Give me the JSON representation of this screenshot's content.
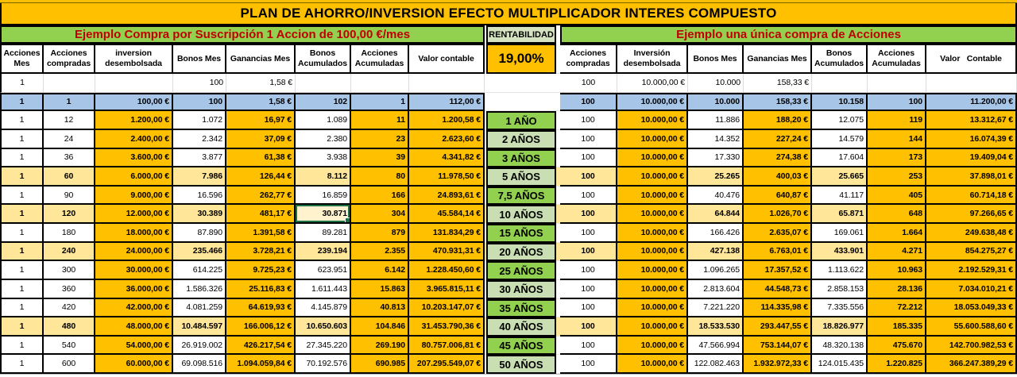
{
  "title": "PLAN DE AHORRO/INVERSION EFECTO MULTIPLICADOR INTERES COMPUESTO",
  "sections": {
    "left": "Ejemplo Compra por Suscripción 1 Accion de 100,00 €/mes",
    "rentabilidad_label": "RENTABILIDAD",
    "rate": "19,00%",
    "right": "Ejemplo una única compra de Acciones"
  },
  "colors": {
    "orange": "#FFC000",
    "header_green": "#92D050",
    "rentabilidad_green": "#D6E3C0",
    "year_light_green": "#C9DFB3",
    "band_cream": "#FFE699",
    "highlight_blue": "#A7C6E7",
    "section_text_red": "#C00000",
    "selection_green": "#1E7145"
  },
  "tables": {
    "left_headers": [
      "Acciones\nMes",
      "Acciones\ncompradas",
      "inversion\ndesembolsada",
      "Bonos Mes",
      "Ganancias Mes",
      "Bonos\nAcumulados",
      "Acciones\nAcumuladas",
      "Valor contable"
    ],
    "right_headers": [
      "Acciones\ncompradas",
      "Inversión\ndesembolsada",
      "Bonos Mes",
      "Ganancias Mes",
      "Bonos\nAcumulados",
      "Acciones\nAcumuladas",
      "Valor   Contable"
    ]
  },
  "rows": [
    {
      "style": "first",
      "left": [
        "1",
        "",
        "",
        "100",
        "1,58 €",
        "",
        "",
        ""
      ],
      "year": "",
      "year_shade": "",
      "right": [
        "100",
        "10.000,00 €",
        "10.000",
        "158,33 €",
        "",
        "",
        ""
      ]
    },
    {
      "style": "highlight",
      "left": [
        "1",
        "1",
        "100,00 €",
        "100",
        "1,58 €",
        "102",
        "1",
        "112,00 €"
      ],
      "year": "",
      "year_shade": "",
      "right": [
        "100",
        "10.000,00 €",
        "10.000",
        "158,33 €",
        "10.158",
        "100",
        "11.200,00 €"
      ]
    },
    {
      "style": "plain",
      "left": [
        "1",
        "12",
        "1.200,00 €",
        "1.072",
        "16,97 €",
        "1.089",
        "11",
        "1.200,58 €"
      ],
      "year": "1 AÑO",
      "year_shade": "bright",
      "right": [
        "100",
        "10.000,00 €",
        "11.886",
        "188,20 €",
        "12.075",
        "119",
        "13.312,67 €"
      ]
    },
    {
      "style": "plain",
      "left": [
        "1",
        "24",
        "2.400,00 €",
        "2.342",
        "37,09 €",
        "2.380",
        "23",
        "2.623,60 €"
      ],
      "year": "2 AÑOS",
      "year_shade": "light",
      "right": [
        "100",
        "10.000,00 €",
        "14.352",
        "227,24 €",
        "14.579",
        "144",
        "16.074,39 €"
      ]
    },
    {
      "style": "plain",
      "left": [
        "1",
        "36",
        "3.600,00 €",
        "3.877",
        "61,38 €",
        "3.938",
        "39",
        "4.341,82 €"
      ],
      "year": "3 AÑOS",
      "year_shade": "bright",
      "right": [
        "100",
        "10.000,00 €",
        "17.330",
        "274,38 €",
        "17.604",
        "173",
        "19.409,04 €"
      ]
    },
    {
      "style": "band",
      "left": [
        "1",
        "60",
        "6.000,00 €",
        "7.986",
        "126,44 €",
        "8.112",
        "80",
        "11.978,50 €"
      ],
      "year": "5 AÑOS",
      "year_shade": "light",
      "right": [
        "100",
        "10.000,00 €",
        "25.265",
        "400,03 €",
        "25.665",
        "253",
        "37.898,01 €"
      ]
    },
    {
      "style": "plain",
      "left": [
        "1",
        "90",
        "9.000,00 €",
        "16.596",
        "262,77 €",
        "16.859",
        "166",
        "24.893,61 €"
      ],
      "year": "7,5 AÑOS",
      "year_shade": "bright",
      "right": [
        "100",
        "10.000,00 €",
        "40.476",
        "640,87 €",
        "41.117",
        "405",
        "60.714,18 €"
      ]
    },
    {
      "style": "band",
      "left": [
        "1",
        "120",
        "12.000,00 €",
        "30.389",
        "481,17 €",
        "30.871",
        "304",
        "45.584,14 €"
      ],
      "year": "10 AÑOS",
      "year_shade": "light",
      "right": [
        "100",
        "10.000,00 €",
        "64.844",
        "1.026,70 €",
        "65.871",
        "648",
        "97.266,65 €"
      ]
    },
    {
      "style": "plain",
      "left": [
        "1",
        "180",
        "18.000,00 €",
        "87.890",
        "1.391,58 €",
        "89.281",
        "879",
        "131.834,29 €"
      ],
      "year": "15 AÑOS",
      "year_shade": "bright",
      "right": [
        "100",
        "10.000,00 €",
        "166.426",
        "2.635,07 €",
        "169.061",
        "1.664",
        "249.638,48 €"
      ]
    },
    {
      "style": "band",
      "left": [
        "1",
        "240",
        "24.000,00 €",
        "235.466",
        "3.728,21 €",
        "239.194",
        "2.355",
        "470.931,31 €"
      ],
      "year": "20 AÑOS",
      "year_shade": "light",
      "right": [
        "100",
        "10.000,00 €",
        "427.138",
        "6.763,01 €",
        "433.901",
        "4.271",
        "854.275,27 €"
      ]
    },
    {
      "style": "plain",
      "left": [
        "1",
        "300",
        "30.000,00 €",
        "614.225",
        "9.725,23 €",
        "623.951",
        "6.142",
        "1.228.450,60 €"
      ],
      "year": "25 AÑOS",
      "year_shade": "bright",
      "right": [
        "100",
        "10.000,00 €",
        "1.096.265",
        "17.357,52 €",
        "1.113.622",
        "10.963",
        "2.192.529,31 €"
      ]
    },
    {
      "style": "plain",
      "left": [
        "1",
        "360",
        "36.000,00 €",
        "1.586.326",
        "25.116,83 €",
        "1.611.443",
        "15.863",
        "3.965.815,11 €"
      ],
      "year": "30 AÑOS",
      "year_shade": "light",
      "right": [
        "100",
        "10.000,00 €",
        "2.813.604",
        "44.548,73 €",
        "2.858.153",
        "28.136",
        "7.034.010,21 €"
      ]
    },
    {
      "style": "plain",
      "left": [
        "1",
        "420",
        "42.000,00 €",
        "4.081.259",
        "64.619,93 €",
        "4.145.879",
        "40.813",
        "10.203.147,07 €"
      ],
      "year": "35 AÑOS",
      "year_shade": "bright",
      "right": [
        "100",
        "10.000,00 €",
        "7.221.220",
        "114.335,98 €",
        "7.335.556",
        "72.212",
        "18.053.049,33 €"
      ]
    },
    {
      "style": "band",
      "left": [
        "1",
        "480",
        "48.000,00 €",
        "10.484.597",
        "166.006,12 €",
        "10.650.603",
        "104.846",
        "31.453.790,36 €"
      ],
      "year": "40 AÑOS",
      "year_shade": "light",
      "right": [
        "100",
        "10.000,00 €",
        "18.533.530",
        "293.447,55 €",
        "18.826.977",
        "185.335",
        "55.600.588,60 €"
      ]
    },
    {
      "style": "plain",
      "left": [
        "1",
        "540",
        "54.000,00 €",
        "26.919.002",
        "426.217,54 €",
        "27.345.220",
        "269.190",
        "80.757.006,81 €"
      ],
      "year": "45 AÑOS",
      "year_shade": "bright",
      "right": [
        "100",
        "10.000,00 €",
        "47.566.994",
        "753.144,07 €",
        "48.320.138",
        "475.670",
        "142.700.982,53 €"
      ]
    },
    {
      "style": "plain",
      "left": [
        "1",
        "600",
        "60.000,00 €",
        "69.098.516",
        "1.094.059,84 €",
        "70.192.576",
        "690.985",
        "207.295.549,07 €"
      ],
      "year": "50 AÑOS",
      "year_shade": "light",
      "right": [
        "100",
        "10.000,00 €",
        "122.082.463",
        "1.932.972,33 €",
        "124.015.435",
        "1.220.825",
        "366.247.389,29 €"
      ]
    }
  ],
  "ui": {
    "selected_cell": {
      "row_index": 7,
      "side": "left",
      "col": 5
    }
  }
}
